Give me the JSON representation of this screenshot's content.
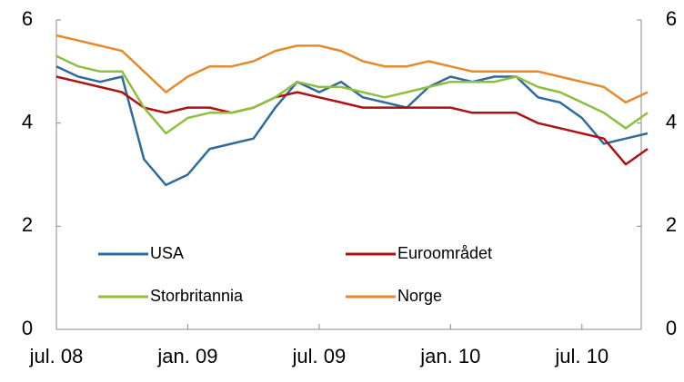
{
  "chart_data": {
    "type": "line",
    "x": [
      "2008-07",
      "2008-08",
      "2008-09",
      "2008-10",
      "2008-11",
      "2008-12",
      "2009-01",
      "2009-02",
      "2009-03",
      "2009-04",
      "2009-05",
      "2009-06",
      "2009-07",
      "2009-08",
      "2009-09",
      "2009-10",
      "2009-11",
      "2009-12",
      "2010-01",
      "2010-02",
      "2010-03",
      "2010-04",
      "2010-05",
      "2010-06",
      "2010-07",
      "2010-08",
      "2010-09",
      "2010-10"
    ],
    "series": [
      {
        "name": "USA",
        "color": "#2e6b9b",
        "values": [
          5.1,
          4.9,
          4.8,
          4.9,
          3.3,
          2.8,
          3.0,
          3.5,
          3.6,
          3.7,
          4.3,
          4.8,
          4.6,
          4.8,
          4.5,
          4.4,
          4.3,
          4.7,
          4.9,
          4.8,
          4.9,
          4.9,
          4.5,
          4.4,
          4.1,
          3.6,
          3.7,
          3.8
        ]
      },
      {
        "name": "Euroområdet",
        "color": "#ad1111",
        "values": [
          4.9,
          4.8,
          4.7,
          4.6,
          4.3,
          4.2,
          4.3,
          4.3,
          4.2,
          4.3,
          4.5,
          4.6,
          4.5,
          4.4,
          4.3,
          4.3,
          4.3,
          4.3,
          4.3,
          4.2,
          4.2,
          4.2,
          4.0,
          3.9,
          3.8,
          3.7,
          3.2,
          3.5
        ]
      },
      {
        "name": "Storbritannia",
        "color": "#8cbf3f",
        "values": [
          5.3,
          5.1,
          5.0,
          5.0,
          4.3,
          3.8,
          4.1,
          4.2,
          4.2,
          4.3,
          4.5,
          4.8,
          4.7,
          4.7,
          4.6,
          4.5,
          4.6,
          4.7,
          4.8,
          4.8,
          4.8,
          4.9,
          4.7,
          4.6,
          4.4,
          4.2,
          3.9,
          4.2
        ]
      },
      {
        "name": "Norge",
        "color": "#e5892c",
        "values": [
          5.7,
          5.6,
          5.5,
          5.4,
          5.0,
          4.6,
          4.9,
          5.1,
          5.1,
          5.2,
          5.4,
          5.5,
          5.5,
          5.4,
          5.2,
          5.1,
          5.1,
          5.2,
          5.1,
          5.0,
          5.0,
          5.0,
          5.0,
          4.9,
          4.8,
          4.7,
          4.4,
          4.6
        ]
      }
    ],
    "xlim": [
      "2008-07",
      "2010-10"
    ],
    "xticks": [
      {
        "value": "2008-07",
        "label": "jul. 08"
      },
      {
        "value": "2009-01",
        "label": "jan. 09"
      },
      {
        "value": "2009-07",
        "label": "jul. 09"
      },
      {
        "value": "2010-01",
        "label": "jan. 10"
      },
      {
        "value": "2010-07",
        "label": "jul. 10"
      }
    ],
    "ylim": [
      0,
      6
    ],
    "yticks": [
      0,
      2,
      4,
      6
    ],
    "y2lim": [
      0,
      6
    ],
    "y2ticks": [
      0,
      2,
      4,
      6
    ],
    "grid": false
  }
}
